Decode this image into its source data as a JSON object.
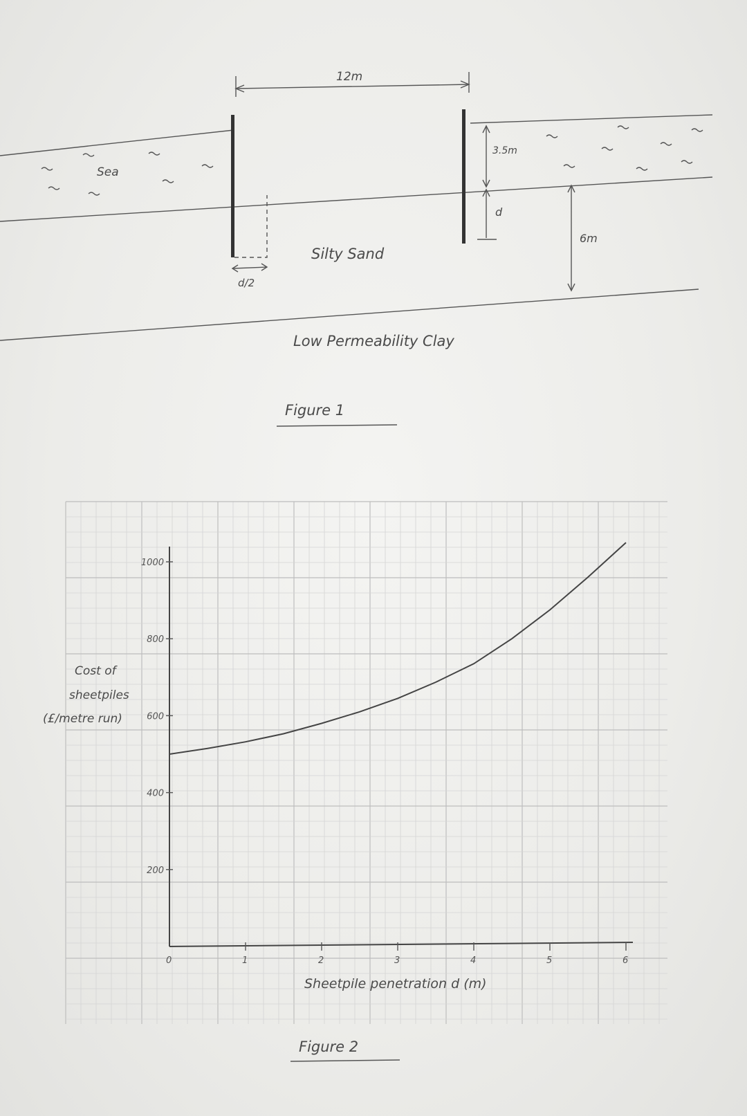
{
  "figure1": {
    "width_label": "12m",
    "sea_label": "Sea",
    "water_depth_label": "3.5m",
    "penetration_label": "d",
    "half_penetration_label": "d/2",
    "sand_label": "Silty Sand",
    "sand_thickness_label": "6m",
    "clay_label": "Low Permeability Clay",
    "caption": "Figure 1"
  },
  "figure2": {
    "caption": "Figure 2"
  },
  "chart_data": {
    "type": "line",
    "title": "",
    "xlabel": "Sheetpile penetration d (m)",
    "ylabel": [
      "Cost of",
      "sheetpiles",
      "(£/metre run)"
    ],
    "xlim": [
      0,
      6
    ],
    "ylim": [
      0,
      1000
    ],
    "x_ticks": [
      "0",
      "1",
      "2",
      "3",
      "4",
      "5",
      "6"
    ],
    "y_ticks": [
      "200",
      "400",
      "600",
      "800",
      "1000"
    ],
    "grid": true,
    "series": [
      {
        "x": [
          0,
          0.5,
          1,
          1.5,
          2,
          2.5,
          3,
          3.5,
          4,
          4.5,
          5,
          5.5,
          6
        ],
        "y": [
          500,
          515,
          532,
          553,
          580,
          610,
          645,
          687,
          735,
          800,
          875,
          960,
          1050
        ]
      }
    ]
  }
}
